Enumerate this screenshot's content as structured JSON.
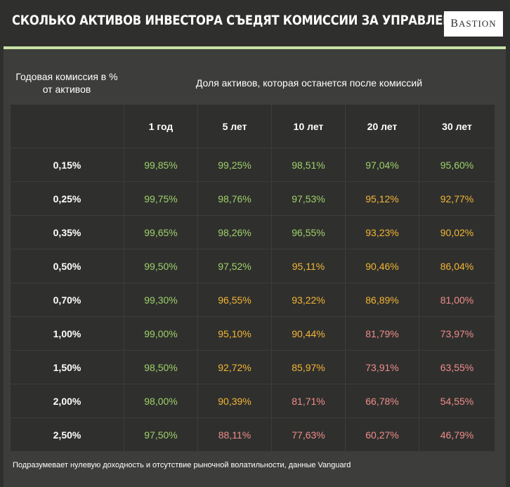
{
  "header": {
    "title": "СКОЛЬКО АКТИВОВ ИНВЕСТОРА СЪЕДЯТ КОМИССИИ ЗА УПРАВЛЕНИЕ",
    "logo_initial": "B",
    "logo_rest": "ASTION"
  },
  "table": {
    "fee_header": "Годовая комиссия в % от активов",
    "share_header": "Доля активов, которая останется после комиссий",
    "year_headers": [
      "1 год",
      "5 лет",
      "10 лет",
      "20 лет",
      "30 лет"
    ],
    "rows": [
      {
        "fee": "0,15%",
        "cells": [
          {
            "v": "99,85%",
            "level": "green"
          },
          {
            "v": "99,25%",
            "level": "green"
          },
          {
            "v": "98,51%",
            "level": "green"
          },
          {
            "v": "97,04%",
            "level": "green"
          },
          {
            "v": "95,60%",
            "level": "green"
          }
        ]
      },
      {
        "fee": "0,25%",
        "cells": [
          {
            "v": "99,75%",
            "level": "green"
          },
          {
            "v": "98,76%",
            "level": "green"
          },
          {
            "v": "97,53%",
            "level": "green"
          },
          {
            "v": "95,12%",
            "level": "yellow"
          },
          {
            "v": "92,77%",
            "level": "yellow"
          }
        ]
      },
      {
        "fee": "0,35%",
        "cells": [
          {
            "v": "99,65%",
            "level": "green"
          },
          {
            "v": "98,26%",
            "level": "green"
          },
          {
            "v": "96,55%",
            "level": "green"
          },
          {
            "v": "93,23%",
            "level": "yellow"
          },
          {
            "v": "90,02%",
            "level": "yellow"
          }
        ]
      },
      {
        "fee": "0,50%",
        "cells": [
          {
            "v": "99,50%",
            "level": "green"
          },
          {
            "v": "97,52%",
            "level": "green"
          },
          {
            "v": "95,11%",
            "level": "yellow"
          },
          {
            "v": "90,46%",
            "level": "yellow"
          },
          {
            "v": "86,04%",
            "level": "yellow"
          }
        ]
      },
      {
        "fee": "0,70%",
        "cells": [
          {
            "v": "99,30%",
            "level": "green"
          },
          {
            "v": "96,55%",
            "level": "yellow"
          },
          {
            "v": "93,22%",
            "level": "yellow"
          },
          {
            "v": "86,89%",
            "level": "yellow"
          },
          {
            "v": "81,00%",
            "level": "red"
          }
        ]
      },
      {
        "fee": "1,00%",
        "cells": [
          {
            "v": "99,00%",
            "level": "green"
          },
          {
            "v": "95,10%",
            "level": "yellow"
          },
          {
            "v": "90,44%",
            "level": "yellow"
          },
          {
            "v": "81,79%",
            "level": "red"
          },
          {
            "v": "73,97%",
            "level": "red"
          }
        ]
      },
      {
        "fee": "1,50%",
        "cells": [
          {
            "v": "98,50%",
            "level": "green"
          },
          {
            "v": "92,72%",
            "level": "yellow"
          },
          {
            "v": "85,97%",
            "level": "yellow"
          },
          {
            "v": "73,91%",
            "level": "red"
          },
          {
            "v": "63,55%",
            "level": "red"
          }
        ]
      },
      {
        "fee": "2,00%",
        "cells": [
          {
            "v": "98,00%",
            "level": "green"
          },
          {
            "v": "90,39%",
            "level": "yellow"
          },
          {
            "v": "81,71%",
            "level": "red"
          },
          {
            "v": "66,78%",
            "level": "red"
          },
          {
            "v": "54,55%",
            "level": "red"
          }
        ]
      },
      {
        "fee": "2,50%",
        "cells": [
          {
            "v": "97,50%",
            "level": "green"
          },
          {
            "v": "88,11%",
            "level": "red"
          },
          {
            "v": "77,63%",
            "level": "red"
          },
          {
            "v": "60,27%",
            "level": "red"
          },
          {
            "v": "46,79%",
            "level": "red"
          }
        ]
      }
    ]
  },
  "footnote": "Подразумевает нулевую доходность и отсутствие рыночной волатильности, данные Vanguard",
  "colors": {
    "background": "#2f302d",
    "panel": "#3d3e3b",
    "accent_line": "#c7e3a6",
    "green": "#9fd06b",
    "yellow": "#f4b536",
    "red": "#f08c8c"
  }
}
